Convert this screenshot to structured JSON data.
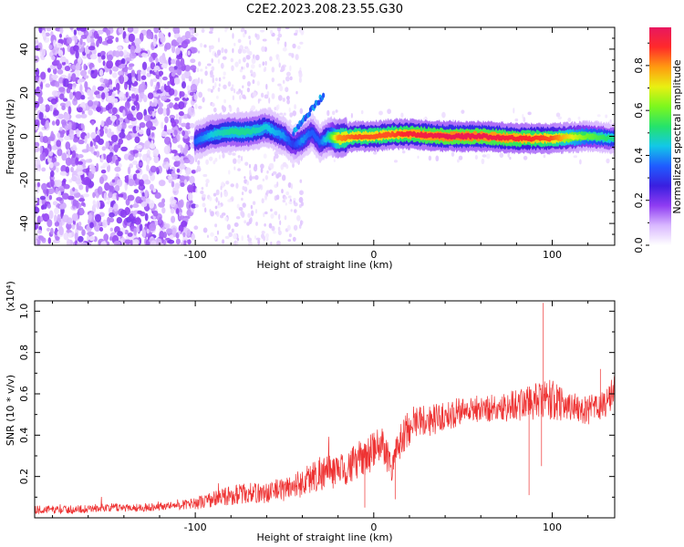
{
  "title": "C2E2.2023.208.23.55.G30",
  "chart_data": [
    {
      "type": "heatmap",
      "xlabel": "Height of straight line (km)",
      "ylabel": "Frequency (Hz)",
      "xlim": [
        -190,
        135
      ],
      "ylim": [
        -50,
        50
      ],
      "xticks": [
        -100,
        0,
        100
      ],
      "xtick_labels": [
        "-100",
        "0",
        "100"
      ],
      "yticks": [
        -40,
        -20,
        0,
        20,
        40
      ],
      "ytick_labels": [
        "-40",
        "-20",
        "0",
        "20",
        "40"
      ],
      "colorbar": {
        "label": "Normalized spectral amplitude",
        "range": [
          0,
          0.97
        ],
        "ticks": [
          0.0,
          0.2,
          0.4,
          0.6,
          0.8
        ],
        "tick_labels": [
          "0.0",
          "0.2",
          "0.4",
          "0.6",
          "0.8"
        ],
        "colors": [
          "#ffffff",
          "#d9b8ff",
          "#8f3cf2",
          "#3a1fe0",
          "#1f5cff",
          "#12c8e8",
          "#25e36a",
          "#7cf71e",
          "#e9f012",
          "#ff9a10",
          "#ff2a2a",
          "#e8175f"
        ]
      },
      "ridge": {
        "x": [
          -100,
          -90,
          -80,
          -70,
          -60,
          -50,
          -45,
          -40,
          -35,
          -30,
          -25,
          -20,
          -10,
          0,
          10,
          20,
          40,
          60,
          80,
          100,
          120,
          135
        ],
        "frequency": [
          -2,
          1,
          2,
          2,
          4,
          0,
          -4,
          -2,
          2,
          -3,
          0,
          -1,
          0,
          0,
          1,
          1,
          0,
          0,
          -1,
          -1,
          0,
          -1
        ],
        "peak_amplitude": [
          0.35,
          0.45,
          0.5,
          0.5,
          0.45,
          0.4,
          0.3,
          0.4,
          0.35,
          0.35,
          0.5,
          0.8,
          0.85,
          0.85,
          0.85,
          0.9,
          0.95,
          0.95,
          0.9,
          0.85,
          0.6,
          0.5
        ]
      }
    },
    {
      "type": "line",
      "xlabel": "Height of straight line (km)",
      "ylabel": "SNR (10 * v/v)",
      "y_multiplier": "(x10⁴)",
      "xlim": [
        -190,
        135
      ],
      "ylim": [
        0,
        1.05
      ],
      "xticks": [
        -100,
        0,
        100
      ],
      "xtick_labels": [
        "-100",
        "0",
        "100"
      ],
      "yticks": [
        0.2,
        0.4,
        0.6,
        0.8,
        1.0
      ],
      "ytick_labels": [
        "0.2",
        "0.4",
        "0.6",
        "0.8",
        "1.0"
      ],
      "series": [
        {
          "color": "#ee3333",
          "x": [
            -190,
            -170,
            -150,
            -130,
            -110,
            -100,
            -90,
            -80,
            -70,
            -60,
            -50,
            -40,
            -30,
            -20,
            -10,
            0,
            5,
            10,
            15,
            20,
            25,
            30,
            40,
            50,
            60,
            70,
            80,
            90,
            100,
            110,
            120,
            130,
            135
          ],
          "mean": [
            0.04,
            0.04,
            0.05,
            0.05,
            0.06,
            0.07,
            0.09,
            0.11,
            0.12,
            0.12,
            0.14,
            0.17,
            0.22,
            0.22,
            0.27,
            0.32,
            0.36,
            0.25,
            0.37,
            0.44,
            0.48,
            0.47,
            0.49,
            0.52,
            0.53,
            0.53,
            0.55,
            0.56,
            0.57,
            0.54,
            0.52,
            0.55,
            0.62
          ],
          "noise": [
            0.02,
            0.02,
            0.02,
            0.02,
            0.02,
            0.03,
            0.04,
            0.05,
            0.05,
            0.05,
            0.06,
            0.07,
            0.09,
            0.08,
            0.09,
            0.1,
            0.09,
            0.08,
            0.09,
            0.09,
            0.08,
            0.08,
            0.07,
            0.07,
            0.07,
            0.07,
            0.08,
            0.09,
            0.1,
            0.07,
            0.07,
            0.07,
            0.09
          ]
        }
      ]
    }
  ]
}
